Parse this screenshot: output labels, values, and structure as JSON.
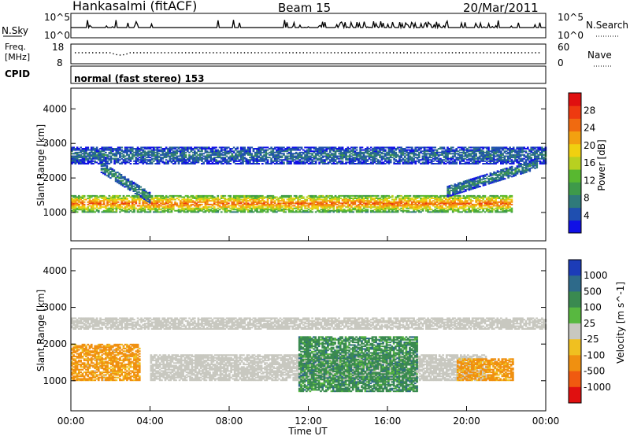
{
  "header": {
    "station": "Hankasalmi (fitACF)",
    "beam": "Beam 15",
    "date": "20/Mar/2011"
  },
  "noise_panel": {
    "left_label": "N.Sky",
    "left_ticks": [
      "10^5",
      "10^0"
    ],
    "right_ticks": [
      "10^5",
      "10^0"
    ],
    "right_label": "N.Search"
  },
  "freq_panel": {
    "left_label_1": "Freq.",
    "left_label_2": "[MHz]",
    "left_ticks": [
      "18",
      "8"
    ],
    "right_ticks": [
      "60",
      "0"
    ],
    "right_label": "Nave"
  },
  "cpid_panel": {
    "label": "CPID",
    "mode_text": "normal (fast stereo) 153"
  },
  "colors": {
    "power_scale": [
      "#1010e6",
      "#1f4fb0",
      "#2f7a7a",
      "#3e9a4a",
      "#58b830",
      "#b8d020",
      "#f0d010",
      "#f3a010",
      "#f06a10",
      "#ee3a10",
      "#e01010"
    ],
    "velocity_scale": [
      "#1c3cb8",
      "#2e6a8a",
      "#3a8a50",
      "#58b840",
      "#c8c8c0",
      "#f0c020",
      "#f09010",
      "#f05a10",
      "#e01010"
    ],
    "ground_scatter": "#c8c8c0"
  },
  "chart_data": [
    {
      "type": "heatmap",
      "quantity": "Power",
      "xlabel": "",
      "ylabel": "Slant Range [km]",
      "x_range_hours": [
        0,
        24
      ],
      "x_ticks": [
        "00:00",
        "04:00",
        "08:00",
        "12:00",
        "16:00",
        "20:00",
        "00:00"
      ],
      "y_range_km": [
        180,
        4600
      ],
      "y_ticks": [
        1000,
        2000,
        3000,
        4000
      ],
      "colorbar": {
        "label": "Power [dB]",
        "range": [
          0,
          32
        ],
        "ticks": [
          4,
          8,
          12,
          16,
          20,
          24,
          28
        ]
      },
      "features": [
        {
          "feature": "main echo band",
          "t_start_h": 0.0,
          "t_end_h": 22.3,
          "range_km": [
            1000,
            1500
          ],
          "typical_power_db": 22
        },
        {
          "feature": "far-range echo band",
          "t_start_h": 0.0,
          "t_end_h": 24.0,
          "range_km": [
            2400,
            2900
          ],
          "typical_power_db": 6
        },
        {
          "feature": "descending band",
          "t_start_h": 1.5,
          "t_end_h": 4.0,
          "range_km": [
            2300,
            1400
          ],
          "typical_power_db": 8
        },
        {
          "feature": "ascending band",
          "t_start_h": 19.0,
          "t_end_h": 23.5,
          "range_km": [
            1600,
            2400
          ],
          "typical_power_db": 8
        }
      ]
    },
    {
      "type": "heatmap",
      "quantity": "Velocity",
      "xlabel": "Time UT",
      "ylabel": "Slant Range [km]",
      "x_range_hours": [
        0,
        24
      ],
      "x_ticks": [
        "00:00",
        "04:00",
        "08:00",
        "12:00",
        "16:00",
        "20:00",
        "00:00"
      ],
      "y_range_km": [
        180,
        4600
      ],
      "y_ticks": [
        1000,
        2000,
        3000,
        4000
      ],
      "colorbar": {
        "label": "Velocity [m s^-1]",
        "ticks": [
          1000,
          500,
          100,
          25,
          -25,
          -100,
          -500,
          -1000
        ]
      },
      "features": [
        {
          "feature": "ground scatter band (grey)",
          "t_start_h": 4.0,
          "t_end_h": 21.0,
          "range_km": [
            1000,
            1700
          ],
          "velocity_ms": 0
        },
        {
          "feature": "far ground scatter (grey)",
          "t_start_h": 0.0,
          "t_end_h": 24.0,
          "range_km": [
            2400,
            2700
          ],
          "velocity_ms": 0
        },
        {
          "feature": "negative velocity echoes",
          "t_start_h": 0.0,
          "t_end_h": 3.5,
          "range_km": [
            1000,
            2000
          ],
          "velocity_ms": -200
        },
        {
          "feature": "negative velocity echoes",
          "t_start_h": 19.5,
          "t_end_h": 22.3,
          "range_km": [
            1000,
            1600
          ],
          "velocity_ms": -200
        },
        {
          "feature": "positive velocity echoes",
          "t_start_h": 11.5,
          "t_end_h": 17.5,
          "range_km": [
            700,
            2200
          ],
          "velocity_ms": 300
        }
      ]
    }
  ]
}
